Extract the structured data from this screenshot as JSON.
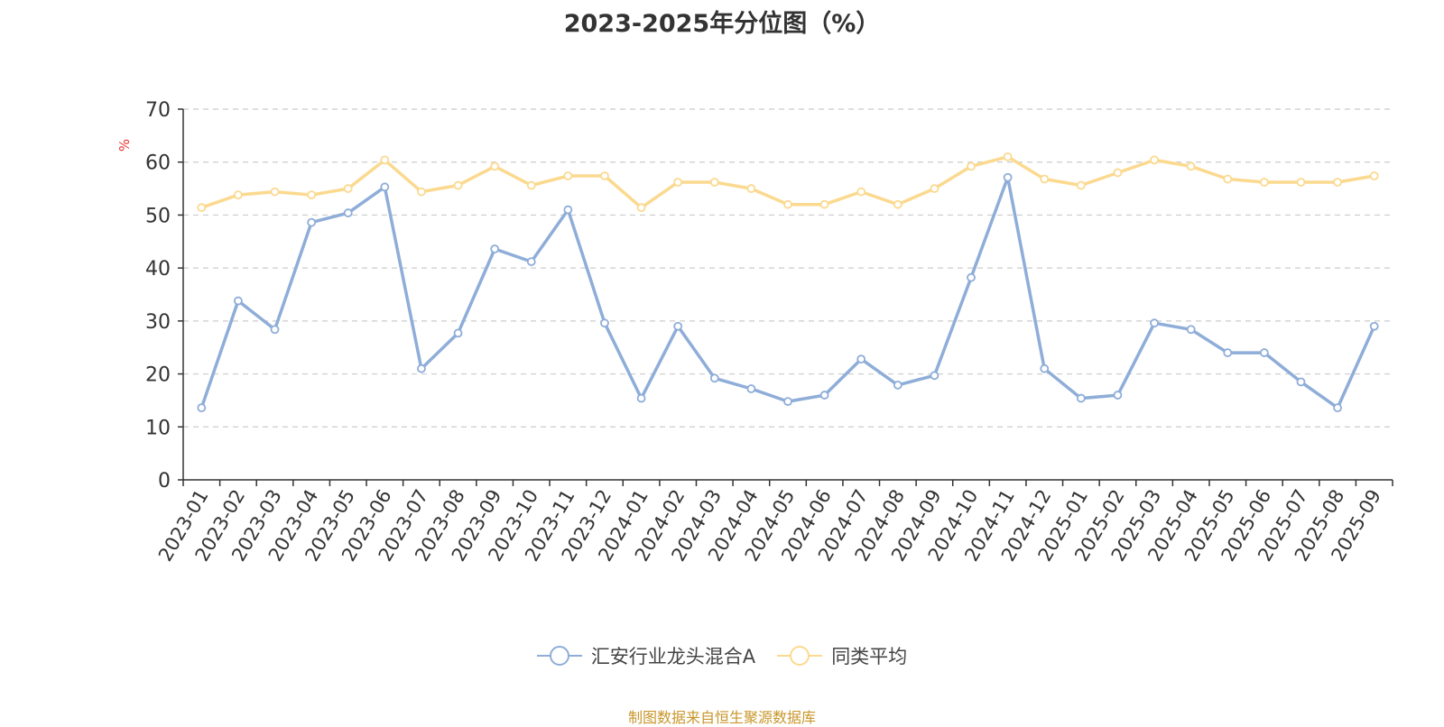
{
  "chart_data": {
    "type": "line",
    "title": "2023-2025年分位图（%）",
    "ylabel": "%",
    "ylim": [
      0,
      70
    ],
    "yticks": [
      0,
      10,
      20,
      30,
      40,
      50,
      60,
      70
    ],
    "grid": true,
    "legend_position": "bottom",
    "categories": [
      "2023-01",
      "2023-02",
      "2023-03",
      "2023-04",
      "2023-05",
      "2023-06",
      "2023-07",
      "2023-08",
      "2023-09",
      "2023-10",
      "2023-11",
      "2023-12",
      "2024-01",
      "2024-02",
      "2024-03",
      "2024-04",
      "2024-05",
      "2024-06",
      "2024-07",
      "2024-08",
      "2024-09",
      "2024-10",
      "2024-11",
      "2024-12",
      "2025-01",
      "2025-02",
      "2025-03",
      "2025-04",
      "2025-05",
      "2025-06",
      "2025-07",
      "2025-08",
      "2025-09"
    ],
    "series": [
      {
        "name": "汇安行业龙头混合A",
        "color": "#8eadd8",
        "values": [
          13.6,
          33.8,
          28.4,
          48.6,
          50.4,
          55.3,
          21.0,
          27.7,
          43.6,
          41.2,
          51.0,
          29.6,
          15.4,
          29.0,
          19.2,
          17.2,
          14.8,
          16.0,
          22.8,
          17.9,
          19.7,
          38.2,
          57.1,
          21.0,
          15.4,
          16.0,
          29.6,
          28.4,
          24.0,
          24.0,
          18.5,
          13.6,
          29.0
        ]
      },
      {
        "name": "同类平均",
        "color": "#fbd98f",
        "values": [
          51.4,
          53.8,
          54.4,
          53.8,
          55.0,
          60.4,
          54.4,
          55.6,
          59.2,
          55.6,
          57.4,
          57.4,
          51.4,
          56.2,
          56.2,
          55.0,
          52.0,
          52.0,
          54.4,
          52.0,
          55.0,
          59.2,
          61.0,
          56.8,
          55.6,
          58.0,
          60.4,
          59.2,
          56.8,
          56.2,
          56.2,
          56.2,
          57.4
        ]
      }
    ]
  },
  "source_note": "制图数据来自恒生聚源数据库"
}
